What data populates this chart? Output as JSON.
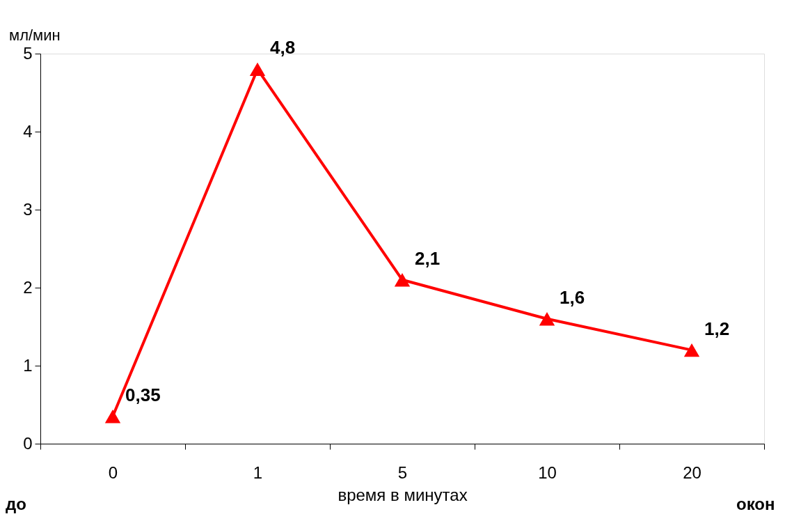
{
  "chart_data": {
    "type": "line",
    "ylabel": "мл/мин",
    "xlabel": "время в минутах",
    "categories": [
      "0",
      "1",
      "5",
      "10",
      "20"
    ],
    "series": [
      {
        "color": "#ff0000",
        "values": [
          0.35,
          4.8,
          2.1,
          1.6,
          1.2
        ],
        "value_labels": [
          "0,35",
          "4,8",
          "2,1",
          "1,6",
          "1,2"
        ]
      }
    ],
    "ylim": [
      0,
      5
    ],
    "yticks": [
      0,
      1,
      2,
      3,
      4,
      5
    ],
    "marker": "triangle",
    "line_style": "solid",
    "grid": false,
    "annotations": [
      "до",
      "окон"
    ]
  }
}
